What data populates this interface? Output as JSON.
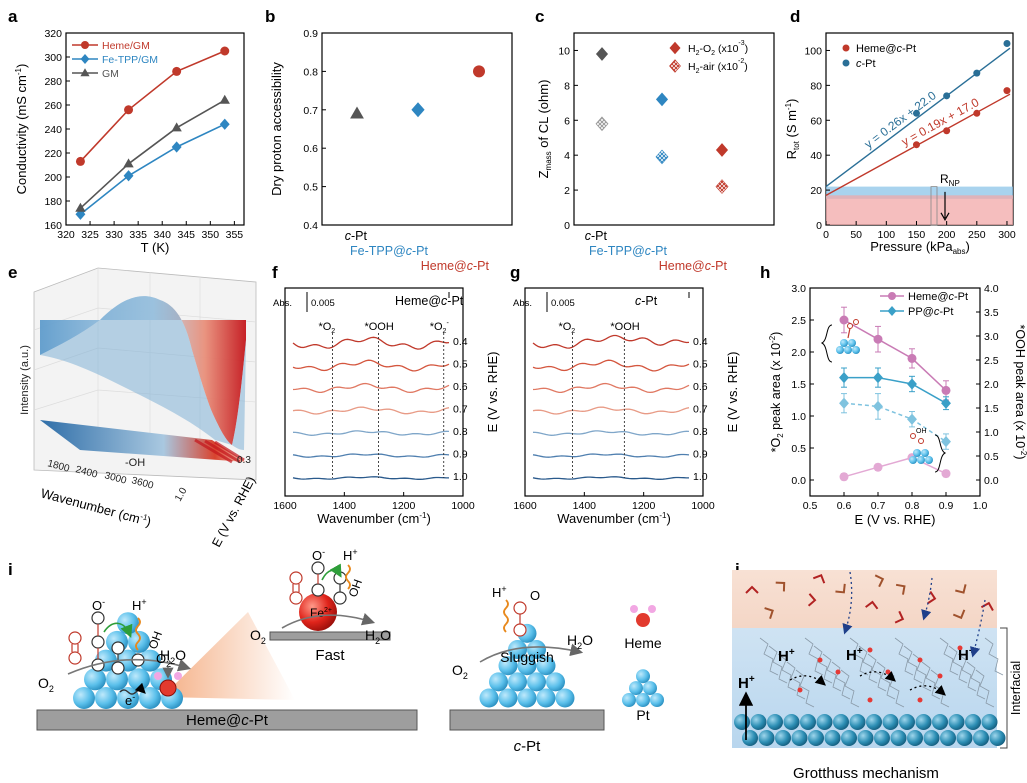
{
  "colors": {
    "heme": "#c0392b",
    "fetpp": "#2e86c1",
    "gm": "#555555",
    "cpt": "#2a6f97",
    "pink": "#c97bb5",
    "teal": "#3aa0c8",
    "pt": "#5bc0eb"
  },
  "chart_data": [
    {
      "id": "a",
      "panel": "a",
      "type": "line",
      "xlabel": "T (K)",
      "ylabel": "Conductivity (mS cm",
      "ylabel_sup": "-1",
      "ylabel_close": ")",
      "xlim": [
        320,
        357
      ],
      "ylim": [
        160,
        320
      ],
      "xticks": [
        320,
        325,
        330,
        335,
        340,
        345,
        350,
        355
      ],
      "yticks": [
        160,
        180,
        200,
        220,
        240,
        260,
        280,
        300,
        320
      ],
      "x": [
        323,
        333,
        343,
        353
      ],
      "series": [
        {
          "name": "Heme/GM",
          "values": [
            213,
            256,
            288,
            305
          ],
          "color": "#c0392b",
          "marker": "circle"
        },
        {
          "name": "Fe-TPP/GM",
          "values": [
            169,
            201,
            225,
            244
          ],
          "color": "#2e86c1",
          "marker": "diamond"
        },
        {
          "name": "GM",
          "values": [
            174,
            211,
            241,
            264
          ],
          "color": "#555555",
          "marker": "triangle"
        }
      ]
    },
    {
      "id": "b",
      "panel": "b",
      "type": "scatter",
      "ylabel": "Dry proton accessibility",
      "ylim": [
        0.4,
        0.9
      ],
      "yticks": [
        0.4,
        0.5,
        0.6,
        0.7,
        0.8,
        0.9
      ],
      "categories": [
        "c-Pt",
        "Fe-TPP@c-Pt",
        "Heme@c-Pt"
      ],
      "cat_parts": [
        [
          "",
          "c",
          "-Pt"
        ],
        [
          "Fe-TPP@",
          "c",
          "-Pt"
        ],
        [
          "Heme@",
          "c",
          "-Pt"
        ]
      ],
      "values": [
        0.69,
        0.7,
        0.8
      ],
      "colors": [
        "#555555",
        "#2e86c1",
        "#c0392b"
      ],
      "markers": [
        "triangle",
        "diamond",
        "circle"
      ]
    },
    {
      "id": "c",
      "panel": "c",
      "type": "scatter",
      "ylabel": "Z",
      "ylabel_sub": "mass",
      "ylabel_rest": " of CL (ohm)",
      "ylim": [
        0,
        11
      ],
      "yticks": [
        0,
        2,
        4,
        6,
        8,
        10
      ],
      "categories": [
        "c-Pt",
        "Fe-TPP@c-Pt",
        "Heme@c-Pt"
      ],
      "cat_parts": [
        [
          "",
          "c",
          "-Pt"
        ],
        [
          "Fe-TPP@",
          "c",
          "-Pt"
        ],
        [
          "Heme@",
          "c",
          "-Pt"
        ]
      ],
      "series": [
        {
          "name": "H2-O2 (x10-3)",
          "label_parts": [
            "H",
            "2",
            "-O",
            "2",
            " (x10",
            "-3",
            ")"
          ],
          "values": [
            9.8,
            7.2,
            4.3
          ],
          "marker": "diamond"
        },
        {
          "name": "H2-air (x10-2)",
          "label_parts": [
            "H",
            "2",
            "-air (x10",
            "-2",
            ")"
          ],
          "values": [
            5.8,
            3.9,
            2.2
          ],
          "marker": "hatched-diamond"
        }
      ],
      "colors": [
        "#555555",
        "#2e86c1",
        "#c0392b"
      ]
    },
    {
      "id": "d",
      "panel": "d",
      "type": "scatter",
      "xlabel": "Pressure (kPa",
      "xlabel_sub": "abs",
      "xlabel_close": ")",
      "ylabel": "R",
      "ylabel_sub": "tot",
      "ylabel_rest": " (S m",
      "ylabel_sup": "-1",
      "ylabel_close": ")",
      "xlim": [
        0,
        310
      ],
      "ylim": [
        0,
        110
      ],
      "xticks": [
        0,
        50,
        100,
        150,
        200,
        250,
        300
      ],
      "yticks": [
        0,
        20,
        40,
        60,
        80,
        100
      ],
      "x": [
        150,
        200,
        250,
        300
      ],
      "series": [
        {
          "name": "Heme@c-Pt",
          "label_parts": [
            "Heme@",
            "c",
            "-Pt"
          ],
          "values": [
            46,
            54,
            64,
            77
          ],
          "color": "#c0392b",
          "fit": "y = 0.19x + 17.0",
          "slope": 0.19,
          "intercept": 17.0
        },
        {
          "name": "c-Pt",
          "label_parts": [
            "",
            "c",
            "-Pt"
          ],
          "values": [
            64,
            74,
            87,
            104
          ],
          "color": "#2a6f97",
          "fit": "y = 0.26x + 22.0",
          "slope": 0.26,
          "intercept": 22.0
        }
      ],
      "band_blue": [
        15,
        22
      ],
      "band_red": [
        0,
        17
      ],
      "annot": "R",
      "annot_sub": "NP"
    },
    {
      "id": "e",
      "panel": "e",
      "type": "area",
      "zlabel": "Intensity (a.u.)",
      "xlabel": "Wavenumber (cm",
      "xlabel_sup": "-1",
      "xlabel_close": ")",
      "ylabel": "E (V vs. RHE)",
      "xticks": [
        "1800",
        "2400",
        "3000",
        "3600"
      ],
      "eticks": [
        "0.3",
        "1.0"
      ],
      "annot": "-OH"
    },
    {
      "id": "f",
      "panel": "f",
      "type": "line",
      "title": "Heme@c-Pt",
      "title_parts": [
        "Heme@",
        "c",
        "-Pt"
      ],
      "xlabel": "Wavenumber (cm",
      "xlabel_sup": "-1",
      "xlabel_close": ")",
      "ylabel": "E (V vs. RHE)",
      "xlim": [
        1600,
        1000
      ],
      "xticks": [
        1600,
        1400,
        1200,
        1000
      ],
      "scale": "Abs.",
      "scale_val": "0.005",
      "potentials": [
        "0.4",
        "0.5",
        "0.6",
        "0.7",
        "0.8",
        "0.9",
        "1.0"
      ],
      "peaks": [
        {
          "label": "*O",
          "sub": "2",
          "x": 1440
        },
        {
          "label": "*OOH",
          "sub": "",
          "x": 1285
        },
        {
          "label": "*O",
          "sub": "2",
          "sup": "-",
          "x": 1065
        }
      ]
    },
    {
      "id": "g",
      "panel": "g",
      "type": "line",
      "title": "c-Pt",
      "title_parts": [
        "",
        "c",
        "-Pt"
      ],
      "xlabel": "Wavenumber (cm",
      "xlabel_sup": "-1",
      "xlabel_close": ")",
      "ylabel": "E (V vs. RHE)",
      "xlim": [
        1600,
        1000
      ],
      "xticks": [
        1600,
        1400,
        1200,
        1000
      ],
      "scale": "Abs.",
      "scale_val": "0.005",
      "potentials": [
        "0.4",
        "0.5",
        "0.6",
        "0.7",
        "0.8",
        "0.9",
        "1.0"
      ],
      "peaks": [
        {
          "label": "*O",
          "sub": "2",
          "x": 1440
        },
        {
          "label": "*OOH",
          "sub": "",
          "x": 1265
        }
      ]
    },
    {
      "id": "h",
      "panel": "h",
      "type": "line",
      "xlabel": "E (V vs. RHE)",
      "ylabel_left": "*O",
      "ylabel_left_sub": "2",
      "ylabel_left_rest": " peak area (x 10",
      "ylabel_left_sup": "-2",
      "ylabel_left_close": ")",
      "ylabel_right": "*OOH peak area (x 10",
      "ylabel_right_sup": "-2",
      "ylabel_right_close": ")",
      "xlim": [
        0.5,
        1.0
      ],
      "xticks": [
        0.5,
        0.6,
        0.7,
        0.8,
        0.9,
        1.0
      ],
      "ylim_left": [
        -0.25,
        3.0
      ],
      "yticks_left": [
        0.0,
        0.5,
        1.0,
        1.5,
        2.0,
        2.5,
        3.0
      ],
      "ylim_right": [
        -0.333,
        4.0
      ],
      "yticks_right": [
        0.0,
        0.5,
        1.0,
        1.5,
        2.0,
        2.5,
        3.0,
        3.5,
        4.0
      ],
      "x": [
        0.6,
        0.7,
        0.8,
        0.9
      ],
      "series": [
        {
          "name": "Heme@c-Pt",
          "label_parts": [
            "Heme@",
            "c",
            "-Pt"
          ],
          "values": [
            2.5,
            2.2,
            1.9,
            1.4
          ],
          "errors": [
            0.2,
            0.2,
            0.15,
            0.15
          ],
          "color": "#c97bb5",
          "axis": "left",
          "style": "solid"
        },
        {
          "name": "PP@c-Pt",
          "label_parts": [
            "PP@",
            "c",
            "-Pt"
          ],
          "values": [
            1.6,
            1.6,
            1.5,
            1.2
          ],
          "errors": [
            0.15,
            0.15,
            0.12,
            0.1
          ],
          "color": "#3aa0c8",
          "axis": "left",
          "style": "solid"
        },
        {
          "name": "Heme@c-Pt *OOH",
          "values": [
            0.05,
            0.2,
            0.35,
            0.1
          ],
          "errors": [
            0.05,
            0.05,
            0.05,
            0.05
          ],
          "color": "#e3a9d4",
          "axis": "left",
          "style": "faded"
        },
        {
          "name": "PP@c-Pt *OOH",
          "values": [
            1.2,
            1.15,
            0.95,
            0.6
          ],
          "errors": [
            0.15,
            0.2,
            0.12,
            0.12
          ],
          "color": "#7fc3df",
          "axis": "left",
          "style": "dashed"
        }
      ]
    }
  ],
  "panels": {
    "a": "a",
    "b": "b",
    "c": "c",
    "d": "d",
    "e": "e",
    "f": "f",
    "g": "g",
    "h": "h",
    "i": "i",
    "j": "j"
  },
  "schematic_i": {
    "o2": "O",
    "o2_sub": "2",
    "o_minus": "O",
    "o_minus_sup": "-",
    "h_plus": "H",
    "h_plus_sup": "+",
    "oh": "OH",
    "h2o": "H",
    "h2o_sub": "2",
    "h2o_rest": "O",
    "e_minus": "e",
    "e_minus_sup": "-",
    "fe": "Fe",
    "fe_sup": "2+",
    "fast": "Fast",
    "sluggish": "Sluggish",
    "heme_label": "Heme",
    "pt_label": "Pt",
    "heme_cpt_parts": [
      "Heme@",
      "c",
      "-Pt"
    ],
    "cpt_parts": [
      "",
      "c",
      "-Pt"
    ]
  },
  "schematic_j": {
    "hplus": "H",
    "hplus_sup": "+",
    "interfacial": "Interfacial",
    "caption": "Grotthuss mechanism"
  }
}
